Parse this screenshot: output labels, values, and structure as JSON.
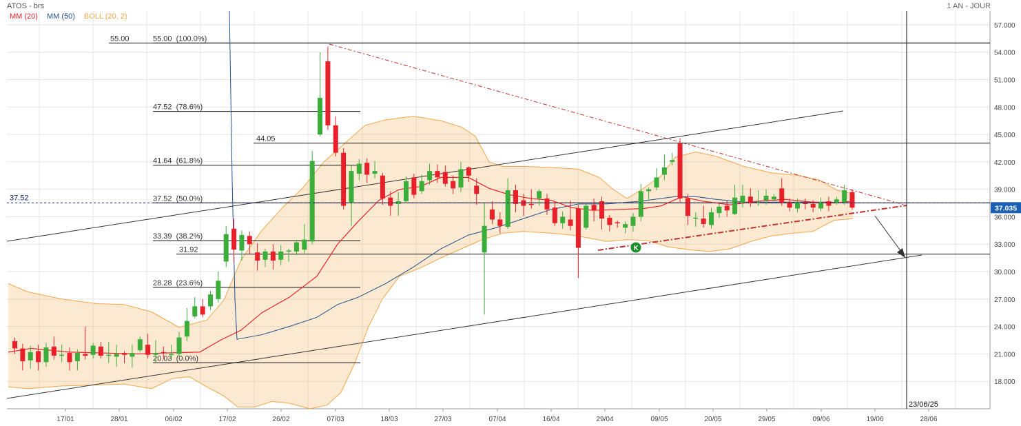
{
  "header": {
    "title": "ATOS - brs",
    "period": "1 AN - JOUR"
  },
  "legend": {
    "ma20": "MM (20)",
    "ma50": "MM (50)",
    "boll": "BOLL (20, 2)"
  },
  "colors": {
    "ma20": "#e8202a",
    "ma50": "#1f4e8c",
    "boll": "#f2a649",
    "up": "#3aad3a",
    "down": "#e8202a",
    "grid": "#e4e4e4"
  },
  "chart_data": {
    "type": "candlestick",
    "ylim": [
      15.0,
      58.5
    ],
    "y_ticks": [
      "57.000",
      "54.000",
      "51.000",
      "48.000",
      "45.000",
      "42.000",
      "39.000",
      "36.000",
      "33.000",
      "30.000",
      "27.000",
      "24.000",
      "21.000",
      "18.000"
    ],
    "x_ticks": [
      "17/01",
      "28/01",
      "06/02",
      "17/02",
      "26/02",
      "07/03",
      "18/03",
      "27/03",
      "07/04",
      "16/04",
      "29/04",
      "09/05",
      "20/05",
      "29/05",
      "09/06",
      "19/06",
      "28/06"
    ],
    "last_price": "37.035",
    "left_marker": "37.52",
    "vline_label": "23/06/25",
    "fibonacci": [
      {
        "label": "55.00  (100.0%)",
        "value": 55.0
      },
      {
        "label": "47.52  (78.6%)",
        "value": 47.52
      },
      {
        "label": "41.64  (61.8%)",
        "value": 41.64
      },
      {
        "label": "37.52  (50.0%)",
        "value": 37.52
      },
      {
        "label": "33.39  (38.2%)",
        "value": 33.39
      },
      {
        "label": "28.28  (23.6%)",
        "value": 28.28
      },
      {
        "label": "20.03  (0.0%)",
        "value": 20.03
      }
    ],
    "levels": [
      {
        "label": "55.00",
        "value": 55.0
      },
      {
        "label": "44.05",
        "value": 44.05
      },
      {
        "label": "31.92",
        "value": 31.92
      }
    ],
    "signal_marker": "K",
    "candles": [
      [
        22.4,
        21.6,
        22.8,
        21.0
      ],
      [
        21.6,
        20.2,
        22.1,
        19.2
      ],
      [
        20.3,
        21.2,
        21.9,
        19.4
      ],
      [
        21.3,
        20.1,
        22.0,
        19.2
      ],
      [
        20.1,
        21.7,
        22.2,
        19.6
      ],
      [
        21.8,
        20.8,
        22.9,
        20.4
      ],
      [
        20.8,
        20.9,
        22.0,
        20.1
      ],
      [
        21.1,
        20.1,
        21.7,
        19.2
      ],
      [
        20.2,
        21.1,
        21.5,
        19.2
      ],
      [
        21.0,
        20.8,
        24.0,
        20.4
      ],
      [
        20.9,
        21.9,
        22.2,
        20.5
      ],
      [
        21.8,
        20.8,
        22.3,
        20.5
      ],
      [
        20.9,
        20.9,
        22.3,
        20.0
      ],
      [
        20.7,
        21.0,
        22.0,
        19.6
      ],
      [
        21.1,
        20.9,
        21.3,
        20.0
      ],
      [
        20.7,
        21.1,
        22.0,
        19.5
      ],
      [
        21.4,
        22.6,
        22.9,
        21.2
      ],
      [
        22.0,
        20.9,
        23.2,
        20.5
      ],
      [
        20.9,
        21.1,
        22.5,
        20.1
      ],
      [
        21.2,
        21.1,
        21.8,
        20.4
      ],
      [
        20.9,
        21.0,
        22.0,
        20.4
      ],
      [
        21.0,
        22.8,
        23.4,
        20.7
      ],
      [
        22.9,
        24.6,
        26.0,
        22.4
      ],
      [
        25.1,
        26.2,
        27.2,
        24.9
      ],
      [
        26.2,
        25.3,
        27.0,
        25.0
      ],
      [
        26.2,
        27.5,
        27.9,
        25.8
      ],
      [
        27.0,
        29.0,
        30.0,
        26.6
      ],
      [
        31.1,
        34.1,
        35.0,
        30.5
      ],
      [
        34.7,
        32.4,
        35.8,
        31.0
      ],
      [
        32.3,
        34.0,
        34.5,
        31.2
      ],
      [
        33.9,
        33.0,
        34.4,
        31.9
      ],
      [
        32.1,
        31.2,
        33.1,
        30.1
      ],
      [
        31.3,
        32.2,
        32.5,
        30.5
      ],
      [
        32.2,
        31.2,
        33.0,
        30.2
      ],
      [
        31.3,
        32.2,
        32.9,
        30.7
      ],
      [
        32.2,
        32.3,
        32.5,
        31.1
      ],
      [
        32.2,
        33.2,
        33.5,
        31.8
      ],
      [
        32.4,
        33.5,
        35.2,
        32.0
      ],
      [
        33.3,
        42.1,
        43.2,
        33.0
      ],
      [
        45.0,
        49.0,
        54.0,
        44.8
      ],
      [
        53.0,
        46.0,
        54.6,
        45.5
      ],
      [
        46.0,
        43.0,
        47.0,
        42.6
      ],
      [
        43.0,
        37.2,
        43.5,
        36.8
      ],
      [
        37.5,
        41.0,
        41.7,
        35.0
      ],
      [
        40.7,
        41.8,
        42.3,
        40.0
      ],
      [
        41.9,
        40.6,
        42.4,
        39.7
      ],
      [
        40.7,
        41.0,
        42.1,
        40.2
      ],
      [
        40.5,
        38.0,
        40.8,
        37.3
      ],
      [
        38.1,
        37.2,
        38.8,
        36.1
      ],
      [
        37.4,
        37.7,
        38.7,
        36.1
      ],
      [
        37.7,
        39.9,
        40.4,
        37.5
      ],
      [
        40.3,
        38.4,
        40.7,
        38.0
      ],
      [
        38.8,
        39.9,
        40.6,
        38.5
      ],
      [
        40.0,
        41.0,
        41.8,
        39.5
      ],
      [
        41.0,
        40.3,
        41.7,
        39.7
      ],
      [
        40.9,
        39.6,
        41.6,
        39.3
      ],
      [
        39.9,
        39.1,
        40.5,
        38.5
      ],
      [
        39.2,
        41.2,
        42.0,
        38.7
      ],
      [
        41.4,
        40.5,
        41.5,
        39.8
      ],
      [
        39.4,
        38.5,
        40.2,
        37.3
      ],
      [
        32.1,
        35.0,
        37.5,
        25.3
      ],
      [
        36.8,
        35.7,
        37.7,
        35.2
      ],
      [
        35.7,
        35.0,
        36.5,
        34.2
      ],
      [
        34.9,
        38.9,
        40.2,
        34.7
      ],
      [
        38.9,
        37.4,
        39.5,
        36.5
      ],
      [
        37.8,
        37.2,
        38.5,
        36.1
      ],
      [
        37.4,
        37.3,
        39.0,
        36.9
      ],
      [
        38.0,
        38.8,
        39.0,
        37.2
      ],
      [
        38.0,
        36.8,
        38.5,
        36.2
      ],
      [
        37.0,
        35.3,
        37.6,
        35.0
      ],
      [
        35.3,
        36.0,
        36.6,
        34.7
      ],
      [
        35.7,
        35.0,
        37.8,
        34.5
      ],
      [
        36.9,
        32.6,
        37.3,
        29.3
      ],
      [
        34.8,
        37.2,
        37.4,
        34.6
      ],
      [
        37.3,
        36.7,
        38.0,
        35.5
      ],
      [
        37.7,
        35.8,
        38.2,
        34.6
      ],
      [
        35.9,
        35.1,
        36.2,
        34.4
      ],
      [
        35.4,
        35.3,
        35.6,
        34.8
      ],
      [
        34.8,
        35.2,
        35.5,
        34.2
      ],
      [
        35.0,
        36.0,
        36.4,
        34.4
      ],
      [
        36.0,
        38.8,
        39.6,
        35.5
      ],
      [
        38.8,
        39.0,
        39.2,
        37.8
      ],
      [
        39.2,
        40.3,
        41.3,
        38.9
      ],
      [
        40.6,
        41.4,
        42.8,
        40.0
      ],
      [
        42.0,
        42.2,
        43.0,
        41.6
      ],
      [
        44.0,
        38.0,
        44.6,
        37.6
      ],
      [
        38.0,
        36.1,
        38.5,
        35.1
      ],
      [
        35.9,
        35.9,
        36.5,
        34.9
      ],
      [
        35.8,
        35.2,
        37.2,
        34.8
      ],
      [
        35.1,
        36.5,
        37.0,
        34.7
      ],
      [
        36.4,
        37.1,
        37.4,
        35.9
      ],
      [
        37.2,
        36.7,
        37.8,
        36.0
      ],
      [
        36.3,
        38.1,
        39.5,
        36.2
      ],
      [
        37.5,
        38.3,
        39.5,
        37.0
      ],
      [
        38.2,
        37.5,
        39.1,
        37.1
      ],
      [
        37.6,
        37.6,
        38.9,
        37.2
      ],
      [
        37.8,
        38.3,
        39.0,
        37.3
      ],
      [
        37.9,
        38.2,
        38.5,
        37.7
      ],
      [
        39.1,
        37.5,
        40.2,
        37.2
      ],
      [
        37.6,
        37.0,
        38.0,
        36.6
      ],
      [
        36.9,
        37.6,
        38.0,
        36.5
      ],
      [
        37.5,
        37.4,
        38.0,
        36.8
      ],
      [
        37.4,
        37.0,
        37.8,
        36.5
      ],
      [
        36.9,
        37.6,
        38.1,
        36.6
      ],
      [
        37.7,
        37.2,
        38.2,
        36.6
      ],
      [
        37.5,
        37.9,
        38.2,
        37.3
      ],
      [
        37.6,
        38.9,
        39.5,
        37.3
      ],
      [
        38.7,
        37.0,
        39.0,
        36.8
      ]
    ],
    "ma20": [
      [
        12,
        21.2
      ],
      [
        45,
        21.6
      ],
      [
        100,
        21.2
      ],
      [
        150,
        21.1
      ],
      [
        200,
        21.0
      ],
      [
        240,
        21.1
      ],
      [
        290,
        21.2
      ],
      [
        320,
        22.5
      ],
      [
        350,
        23.6
      ],
      [
        380,
        25.5
      ],
      [
        420,
        27.2
      ],
      [
        460,
        29.5
      ],
      [
        490,
        33.0
      ],
      [
        520,
        35.5
      ],
      [
        550,
        37.8
      ],
      [
        580,
        39.0
      ],
      [
        610,
        39.3
      ],
      [
        640,
        40.3
      ],
      [
        680,
        40.3
      ],
      [
        710,
        39.1
      ],
      [
        740,
        38.4
      ],
      [
        770,
        38.0
      ],
      [
        800,
        37.8
      ],
      [
        830,
        37.0
      ],
      [
        860,
        36.7
      ],
      [
        900,
        36.8
      ],
      [
        935,
        36.9
      ],
      [
        960,
        37.2
      ],
      [
        990,
        38.2
      ],
      [
        1020,
        37.7
      ],
      [
        1060,
        37.3
      ],
      [
        1100,
        37.7
      ],
      [
        1140,
        37.9
      ],
      [
        1180,
        37.6
      ],
      [
        1210,
        37.5
      ],
      [
        1238,
        37.7
      ]
    ],
    "ma50": [
      [
        333,
        58.5
      ],
      [
        337,
        40.0
      ],
      [
        341,
        27.0
      ],
      [
        344,
        22.6
      ],
      [
        380,
        23.1
      ],
      [
        420,
        24.0
      ],
      [
        460,
        25.0
      ],
      [
        490,
        26.4
      ],
      [
        520,
        27.2
      ],
      [
        560,
        28.7
      ],
      [
        600,
        30.5
      ],
      [
        640,
        32.5
      ],
      [
        680,
        34.0
      ],
      [
        720,
        34.8
      ],
      [
        760,
        35.8
      ],
      [
        800,
        36.8
      ],
      [
        840,
        37.4
      ],
      [
        880,
        37.4
      ],
      [
        930,
        37.7
      ],
      [
        980,
        38.2
      ],
      [
        1010,
        38.2
      ],
      [
        1040,
        37.9
      ],
      [
        1080,
        37.6
      ],
      [
        1120,
        37.6
      ],
      [
        1160,
        37.6
      ],
      [
        1200,
        37.6
      ],
      [
        1238,
        37.5
      ]
    ],
    "boll_upper": [
      [
        12,
        28.7
      ],
      [
        40,
        27.8
      ],
      [
        90,
        27.0
      ],
      [
        140,
        26.5
      ],
      [
        180,
        26.4
      ],
      [
        220,
        25.6
      ],
      [
        260,
        23.9
      ],
      [
        300,
        24.7
      ],
      [
        325,
        26.9
      ],
      [
        350,
        31.3
      ],
      [
        380,
        34.5
      ],
      [
        410,
        37.0
      ],
      [
        440,
        39.2
      ],
      [
        470,
        42.0
      ],
      [
        500,
        44.0
      ],
      [
        530,
        46.0
      ],
      [
        560,
        46.6
      ],
      [
        600,
        47.0
      ],
      [
        640,
        46.5
      ],
      [
        670,
        45.8
      ],
      [
        690,
        44.8
      ],
      [
        710,
        42.0
      ],
      [
        730,
        41.5
      ],
      [
        760,
        41.5
      ],
      [
        800,
        41.4
      ],
      [
        840,
        41.2
      ],
      [
        870,
        40.3
      ],
      [
        890,
        39.0
      ],
      [
        910,
        38.0
      ],
      [
        930,
        38.9
      ],
      [
        960,
        40.5
      ],
      [
        980,
        42.5
      ],
      [
        1010,
        43.1
      ],
      [
        1040,
        42.6
      ],
      [
        1080,
        41.5
      ],
      [
        1120,
        40.8
      ],
      [
        1160,
        40.5
      ],
      [
        1190,
        40.0
      ],
      [
        1215,
        38.9
      ],
      [
        1238,
        38.5
      ]
    ],
    "boll_lower": [
      [
        12,
        17.4
      ],
      [
        40,
        17.2
      ],
      [
        90,
        17.5
      ],
      [
        140,
        17.6
      ],
      [
        180,
        17.7
      ],
      [
        220,
        17.2
      ],
      [
        250,
        18.3
      ],
      [
        275,
        18.5
      ],
      [
        300,
        17.4
      ],
      [
        325,
        16.4
      ],
      [
        345,
        15.2
      ],
      [
        370,
        15.2
      ],
      [
        395,
        15.8
      ],
      [
        420,
        15.6
      ],
      [
        450,
        15.0
      ],
      [
        475,
        15.4
      ],
      [
        495,
        16.8
      ],
      [
        515,
        20.0
      ],
      [
        535,
        24.0
      ],
      [
        555,
        27.0
      ],
      [
        580,
        29.5
      ],
      [
        610,
        30.4
      ],
      [
        640,
        31.5
      ],
      [
        670,
        32.5
      ],
      [
        700,
        33.5
      ],
      [
        730,
        34.2
      ],
      [
        760,
        34.4
      ],
      [
        800,
        34.2
      ],
      [
        830,
        34.0
      ],
      [
        860,
        33.6
      ],
      [
        880,
        33.3
      ],
      [
        910,
        33.5
      ],
      [
        940,
        33.4
      ],
      [
        970,
        32.7
      ],
      [
        1000,
        32.4
      ],
      [
        1030,
        32.2
      ],
      [
        1060,
        32.5
      ],
      [
        1090,
        33.3
      ],
      [
        1120,
        33.9
      ],
      [
        1150,
        34.2
      ],
      [
        1180,
        34.4
      ],
      [
        1210,
        35.6
      ],
      [
        1238,
        35.8
      ]
    ]
  }
}
